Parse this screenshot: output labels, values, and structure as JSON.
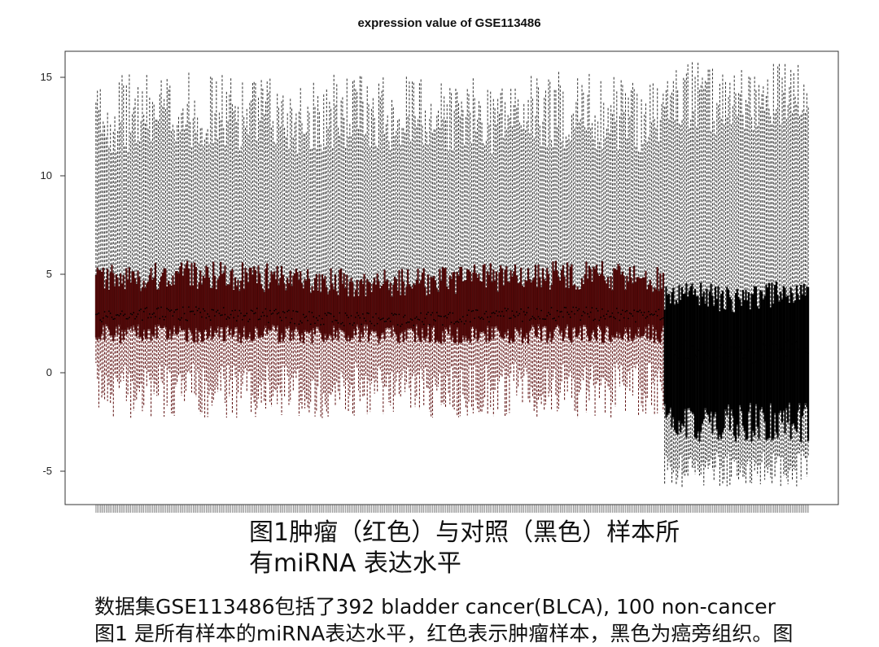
{
  "chart_data": {
    "type": "boxplot",
    "title": "expression value of GSE113486",
    "xlabel": "",
    "ylabel": "",
    "ylim": [
      -6.5,
      16
    ],
    "yticks": [
      -5,
      0,
      5,
      10,
      15
    ],
    "grid": false,
    "legend": "none",
    "groups": [
      {
        "label": "tumor (red)",
        "color": "#5a0a0a",
        "count": 392,
        "median_range": [
          2.5,
          3.2
        ],
        "q1_range": [
          1.5,
          2.5
        ],
        "q3_range": [
          4.0,
          5.5
        ],
        "lower_whisker_range": [
          -2.3,
          0.5
        ],
        "upper_whisker_range": [
          11.0,
          15.0
        ]
      },
      {
        "label": "control (black)",
        "color": "#000000",
        "count": 100,
        "median_range": [
          0.5,
          1.5
        ],
        "q1_range": [
          -3.5,
          -1.5
        ],
        "q3_range": [
          3.2,
          4.5
        ],
        "lower_whisker_range": [
          -5.9,
          -4.0
        ],
        "upper_whisker_range": [
          12.0,
          15.5
        ]
      }
    ]
  },
  "caption": {
    "line1": "图1肿瘤（红色）与对照（黑色）样本所",
    "line2": "有miRNA 表达水平"
  },
  "body": {
    "line1": "数据集GSE113486包括了392 bladder cancer(BLCA), 100 non-cancer",
    "line2": "图1 是所有样本的miRNA表达水平，红色表示肿瘤样本，黑色为癌旁组织。图"
  }
}
